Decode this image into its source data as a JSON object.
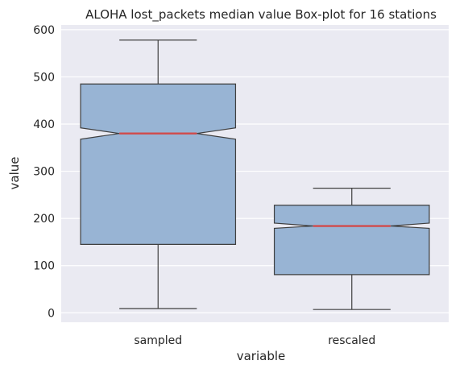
{
  "chart_data": {
    "type": "boxplot",
    "title": "ALOHA lost_packets median value Box-plot for 16 stations",
    "xlabel": "variable",
    "ylabel": "value",
    "ylim": [
      -20,
      610
    ],
    "yticks": [
      0,
      100,
      200,
      300,
      400,
      500,
      600
    ],
    "grid": true,
    "notched": true,
    "categories": [
      "sampled",
      "rescaled"
    ],
    "boxes": [
      {
        "category": "sampled",
        "whisker_low": 9,
        "q1": 145,
        "notch_low": 368,
        "median": 380,
        "notch_high": 392,
        "q3": 485,
        "whisker_high": 578
      },
      {
        "category": "rescaled",
        "whisker_low": 7,
        "q1": 81,
        "notch_low": 179,
        "median": 184,
        "notch_high": 190,
        "q3": 228,
        "whisker_high": 264
      }
    ],
    "colors": {
      "background": "#eaeaf2",
      "grid": "#ffffff",
      "box_fill": "#98b4d4",
      "box_edge": "#3f3f3f",
      "median": "#d14a4a"
    }
  }
}
